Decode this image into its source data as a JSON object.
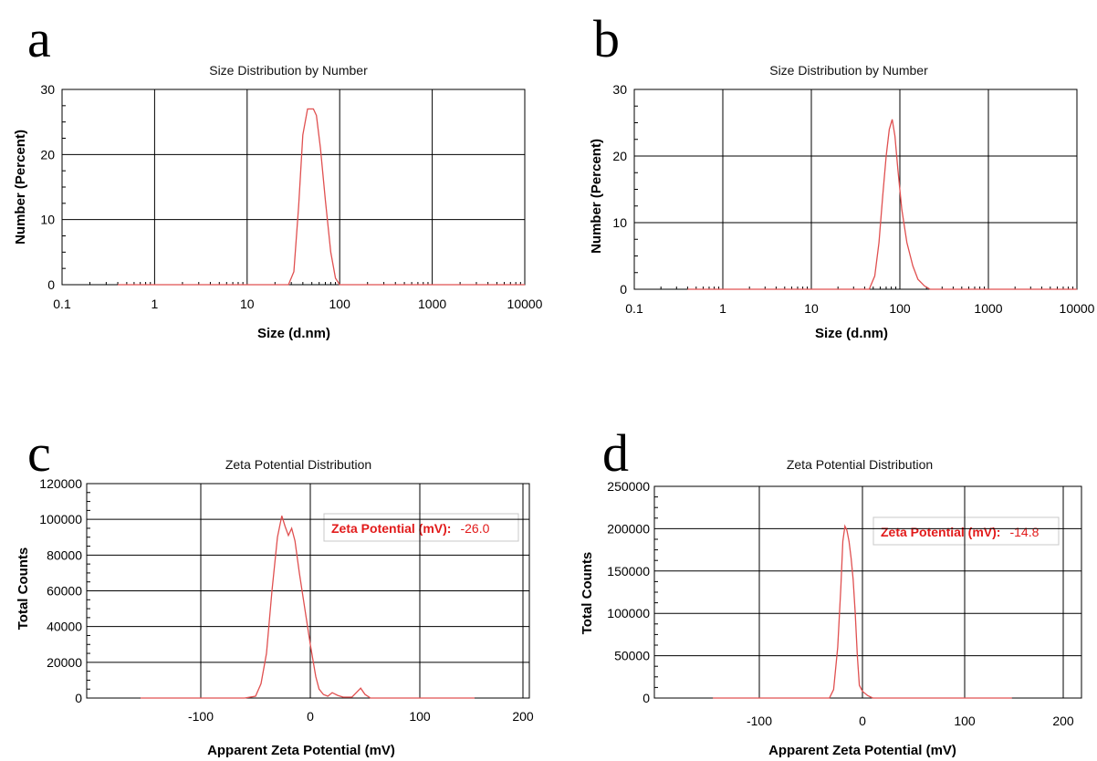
{
  "chart_data": [
    {
      "panel": "a",
      "type": "line",
      "title": "Size Distribution by Number",
      "xlabel": "Size (d.nm)",
      "ylabel": "Number (Percent)",
      "xscale": "log",
      "xlim": [
        0.1,
        10000
      ],
      "ylim": [
        0,
        30
      ],
      "xticks": [
        "0.1",
        "1",
        "10",
        "100",
        "1000",
        "10000"
      ],
      "yticks": [
        "0",
        "10",
        "20",
        "30"
      ],
      "grid": true,
      "color": "#e05050",
      "x": [
        0.4,
        28,
        32,
        36,
        40,
        45,
        48,
        52,
        56,
        62,
        70,
        80,
        90,
        100,
        110,
        10000
      ],
      "y": [
        0,
        0,
        2,
        12,
        23,
        27,
        27,
        27,
        26,
        21,
        13,
        5,
        1,
        0,
        0,
        0
      ]
    },
    {
      "panel": "b",
      "type": "line",
      "title": "Size Distribution by Number",
      "xlabel": "Size (d.nm)",
      "ylabel": "Number (Percent)",
      "xscale": "log",
      "xlim": [
        0.1,
        10000
      ],
      "ylim": [
        0,
        30
      ],
      "xticks": [
        "0.1",
        "1",
        "10",
        "100",
        "1000",
        "10000"
      ],
      "yticks": [
        "0",
        "10",
        "20",
        "30"
      ],
      "grid": true,
      "color": "#e05050",
      "x": [
        0.4,
        45,
        52,
        58,
        64,
        70,
        76,
        82,
        88,
        95,
        105,
        120,
        140,
        160,
        190,
        220,
        10000
      ],
      "y": [
        0,
        0,
        2,
        7,
        14,
        20,
        24,
        25.5,
        23,
        18,
        12,
        7,
        3.5,
        1.5,
        0.5,
        0,
        0
      ]
    },
    {
      "panel": "c",
      "type": "line",
      "title": "Zeta Potential Distribution",
      "xlabel": "Apparent Zeta Potential (mV)",
      "ylabel": "Total Counts",
      "xlim": [
        -200,
        200
      ],
      "ylim": [
        0,
        120000
      ],
      "xticks": [
        "-100",
        "0",
        "100",
        "200"
      ],
      "yticks": [
        "0",
        "20000",
        "40000",
        "60000",
        "80000",
        "100000",
        "120000"
      ],
      "grid": true,
      "color": "#e05050",
      "annotation": {
        "label": "Zeta Potential (mV):",
        "value": "-26.0"
      },
      "x": [
        -155,
        -60,
        -50,
        -45,
        -40,
        -35,
        -30,
        -26,
        -23,
        -20,
        -17,
        -14,
        -10,
        -5,
        0,
        5,
        8,
        12,
        16,
        20,
        25,
        30,
        38,
        42,
        46,
        50,
        55,
        150
      ],
      "y": [
        0,
        0,
        1000,
        8000,
        25000,
        60000,
        90000,
        102000,
        96000,
        91000,
        95000,
        88000,
        70000,
        50000,
        30000,
        12000,
        5000,
        2000,
        1000,
        3000,
        1500,
        500,
        500,
        3000,
        5500,
        2000,
        0,
        0
      ]
    },
    {
      "panel": "d",
      "type": "line",
      "title": "Zeta Potential Distribution",
      "xlabel": "Apparent Zeta Potential (mV)",
      "ylabel": "Total Counts",
      "xlim": [
        -200,
        200
      ],
      "ylim": [
        0,
        250000
      ],
      "xticks": [
        "-100",
        "0",
        "100",
        "200"
      ],
      "yticks": [
        "0",
        "50000",
        "100000",
        "150000",
        "200000",
        "250000"
      ],
      "grid": true,
      "color": "#e05050",
      "annotation": {
        "label": "Zeta Potential (mV):",
        "value": "-14.8"
      },
      "x": [
        -145,
        -32,
        -28,
        -24,
        -21,
        -19,
        -17,
        -15,
        -13,
        -11,
        -9,
        -7,
        -5,
        -3,
        0,
        5,
        10,
        145
      ],
      "y": [
        0,
        0,
        10000,
        60000,
        130000,
        185000,
        203000,
        198000,
        185000,
        165000,
        140000,
        100000,
        50000,
        15000,
        8000,
        3000,
        0,
        0
      ]
    }
  ]
}
